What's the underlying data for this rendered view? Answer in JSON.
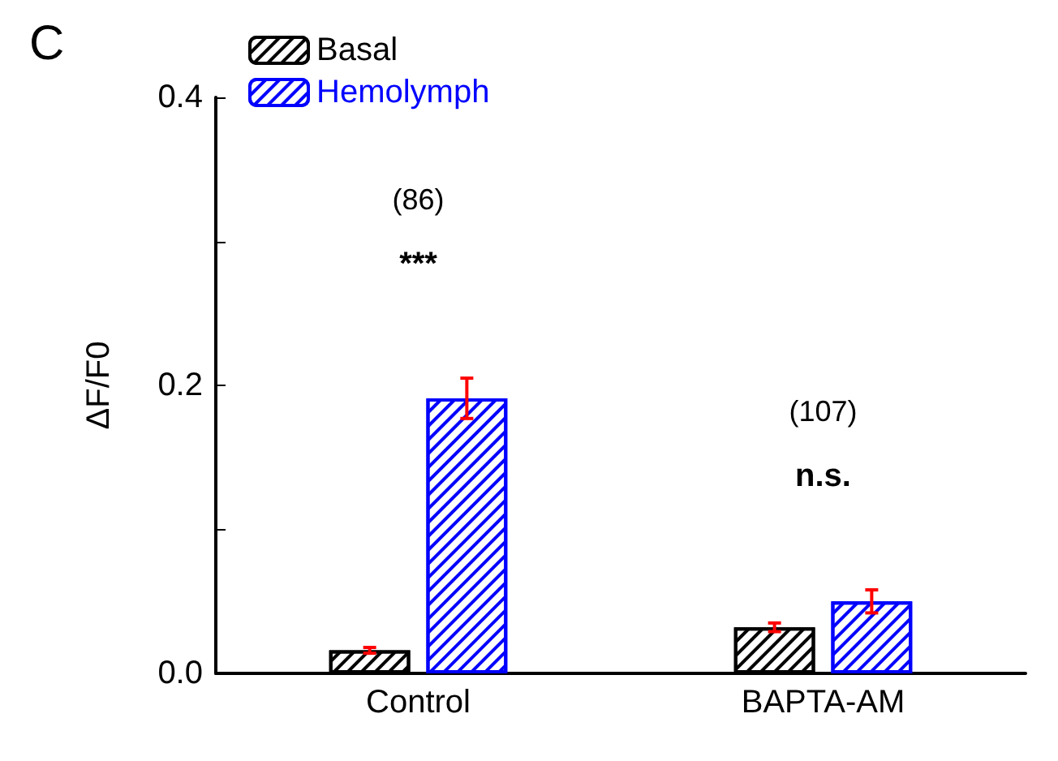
{
  "chart_data": {
    "type": "bar",
    "ylabel": "ΔF/F0",
    "categories": [
      "Control",
      "BAPTA-AM"
    ],
    "series": [
      {
        "name": "Basal",
        "color": "#000000",
        "values": [
          0.016,
          0.032
        ],
        "errors": [
          0.002,
          0.003
        ]
      },
      {
        "name": "Hemolymph",
        "color": "#0000ff",
        "values": [
          0.191,
          0.05
        ],
        "errors": [
          0.014,
          0.008
        ]
      }
    ],
    "ylim": [
      0,
      0.4
    ],
    "yticks": [
      {
        "value": 0,
        "label": "0.0"
      },
      {
        "value": 0.1,
        "label": null
      },
      {
        "value": 0.2,
        "label": "0.2"
      },
      {
        "value": 0.3,
        "label": null
      },
      {
        "value": 0.4,
        "label": "0.4"
      }
    ],
    "grid": false,
    "legend": "top left",
    "annotations": [
      "C",
      "(86)",
      "***",
      "(107)",
      "n.s."
    ]
  }
}
